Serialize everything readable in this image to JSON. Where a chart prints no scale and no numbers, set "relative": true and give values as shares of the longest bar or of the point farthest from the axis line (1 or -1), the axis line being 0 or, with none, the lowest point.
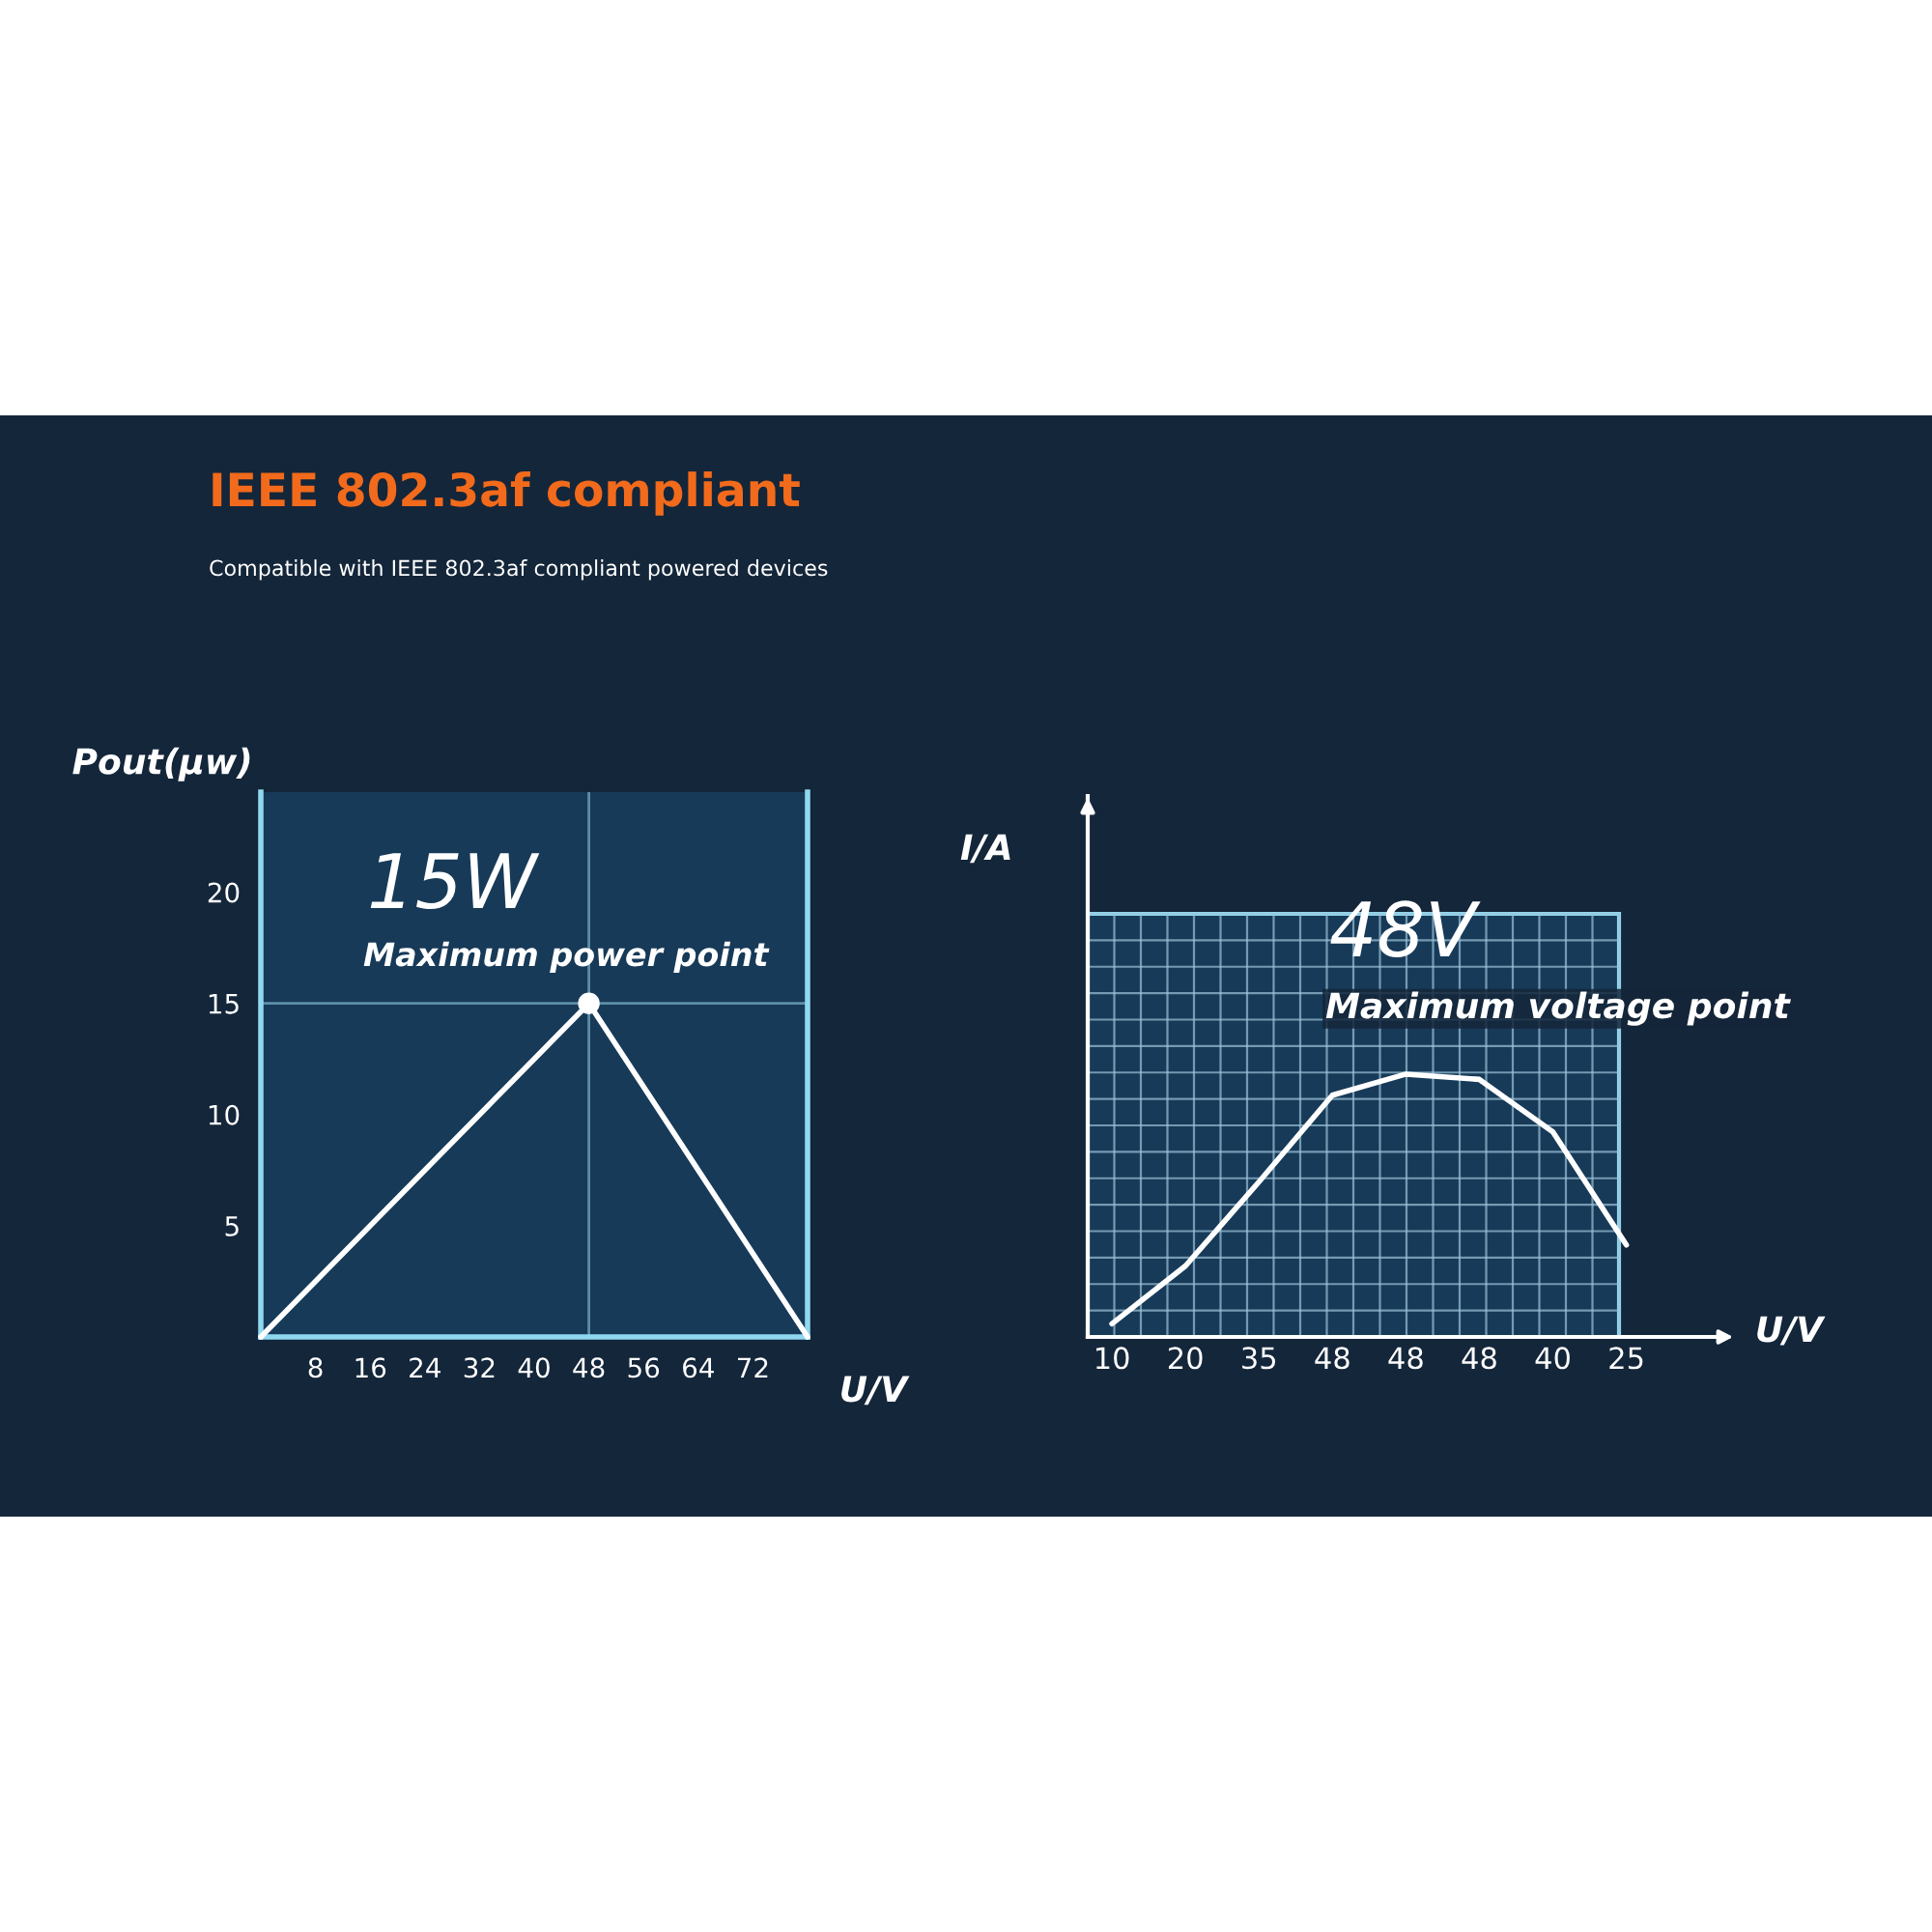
{
  "chart_data": [
    {
      "type": "line",
      "title": "IEEE 802.3af compliant",
      "subtitle": "Compatible with IEEE 802.3af compliant powered devices",
      "xlabel": "U/V",
      "ylabel": "Pout(μw)",
      "xlim": [
        0,
        80
      ],
      "xticks": [
        8,
        16,
        24,
        32,
        40,
        48,
        56,
        64,
        72
      ],
      "ylim": [
        0,
        24.5
      ],
      "yticks": [
        5,
        10,
        15,
        20
      ],
      "series": [
        {
          "type": "line",
          "color": "#ffffff",
          "x": [
            0,
            48,
            80
          ],
          "values": [
            0,
            15,
            0
          ]
        },
        {
          "type": "scatter",
          "color": "#ffffff",
          "marker": "circle",
          "x": [
            48
          ],
          "values": [
            15
          ]
        }
      ],
      "ref_lines": [
        {
          "axis": "x",
          "value": 48,
          "color": "#5f8fa8"
        },
        {
          "axis": "y",
          "value": 15,
          "color": "#5f8fa8"
        }
      ],
      "annotations": [
        "15W",
        "Maximum power point"
      ]
    },
    {
      "type": "line",
      "relative": true,
      "xlabel": "U/V",
      "ylabel": "I/A",
      "grid": true,
      "categories": [
        "10",
        "20",
        "35",
        "48",
        "48",
        "48",
        "40",
        "25"
      ],
      "series": [
        {
          "type": "line",
          "color": "#ffffff",
          "values": [
            0.05,
            0.27,
            0.59,
            0.92,
            1,
            0.98,
            0.78,
            0.35
          ]
        }
      ],
      "annotations": [
        "48V",
        "Maximum voltage point"
      ]
    }
  ]
}
